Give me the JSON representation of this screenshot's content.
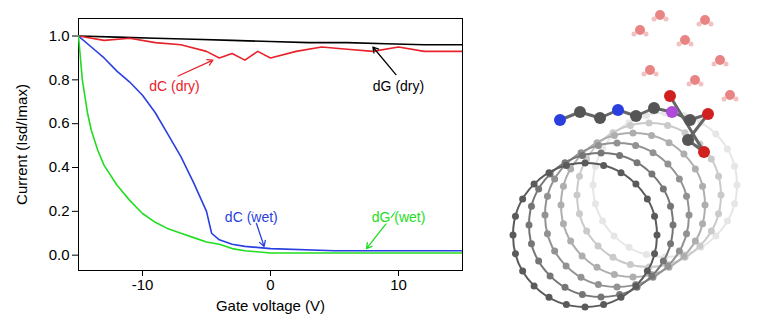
{
  "chart_data": {
    "type": "line",
    "x_label": "Gate voltage (V)",
    "y_label": "Current (Isd/Imax)",
    "xlim": [
      -15,
      15
    ],
    "xticks": [
      -10,
      0,
      10
    ],
    "ylim": [
      -0.07,
      1.08
    ],
    "yticks": [
      {
        "value": 0,
        "label": "0.0"
      },
      {
        "value": 0.2,
        "label": "0.2"
      },
      {
        "value": 0.4,
        "label": "0.4"
      },
      {
        "value": 0.6,
        "label": "0.6"
      },
      {
        "value": 0.8,
        "label": "0.8"
      },
      {
        "value": 1,
        "label": "1.0"
      }
    ],
    "grid": false,
    "series": [
      {
        "name": "dG (dry)",
        "color": "#000000",
        "x": [
          -15,
          -12,
          -9,
          -6,
          -3,
          0,
          3,
          6,
          9,
          12,
          15
        ],
        "values": [
          1.0,
          0.995,
          0.99,
          0.985,
          0.98,
          0.975,
          0.97,
          0.97,
          0.965,
          0.96,
          0.96
        ]
      },
      {
        "name": "dC (dry)",
        "color": "#e8222a",
        "x": [
          -15,
          -13,
          -11,
          -9,
          -7,
          -5,
          -4,
          -3,
          -2,
          -1,
          0,
          2,
          4,
          6,
          8,
          10,
          12,
          15
        ],
        "values": [
          1.0,
          0.98,
          0.99,
          0.97,
          0.96,
          0.93,
          0.9,
          0.92,
          0.89,
          0.93,
          0.9,
          0.93,
          0.95,
          0.94,
          0.93,
          0.95,
          0.93,
          0.93
        ]
      },
      {
        "name": "dC (wet)",
        "color": "#2a3fe0",
        "x": [
          -15,
          -14,
          -13,
          -12,
          -11,
          -10,
          -9,
          -8,
          -7,
          -6,
          -5,
          -4.6,
          -4,
          -3,
          -2,
          0,
          5,
          10,
          15
        ],
        "values": [
          1.0,
          0.95,
          0.9,
          0.84,
          0.79,
          0.73,
          0.65,
          0.55,
          0.45,
          0.33,
          0.2,
          0.1,
          0.07,
          0.05,
          0.04,
          0.03,
          0.02,
          0.02,
          0.02
        ]
      },
      {
        "name": "dG (wet)",
        "color": "#22dd22",
        "x": [
          -15,
          -14.7,
          -14.3,
          -14,
          -13.5,
          -13,
          -12,
          -11,
          -10,
          -9,
          -8,
          -7,
          -6,
          -5,
          -4,
          -3,
          -2,
          0,
          5,
          10,
          15
        ],
        "values": [
          1.0,
          0.8,
          0.65,
          0.57,
          0.48,
          0.41,
          0.32,
          0.25,
          0.19,
          0.15,
          0.12,
          0.1,
          0.08,
          0.06,
          0.05,
          0.03,
          0.02,
          0.01,
          0.01,
          0.01,
          0.01
        ]
      }
    ],
    "annotations": [
      {
        "text": "dC (dry)",
        "color": "#e8222a",
        "x": -7.5,
        "y": 0.77,
        "arrow_x": -4.5,
        "arrow_y": 0.89
      },
      {
        "text": "dG (dry)",
        "color": "#000000",
        "x": 10,
        "y": 0.77,
        "arrow_x": 8,
        "arrow_y": 0.95
      },
      {
        "text": "dC (wet)",
        "color": "#2a3fe0",
        "x": -1.5,
        "y": 0.17,
        "arrow_x": -0.5,
        "arrow_y": 0.04
      },
      {
        "text": "dG (wet)",
        "color": "#22dd22",
        "x": 10,
        "y": 0.17,
        "arrow_x": 7.5,
        "arrow_y": 0.03
      }
    ]
  }
}
